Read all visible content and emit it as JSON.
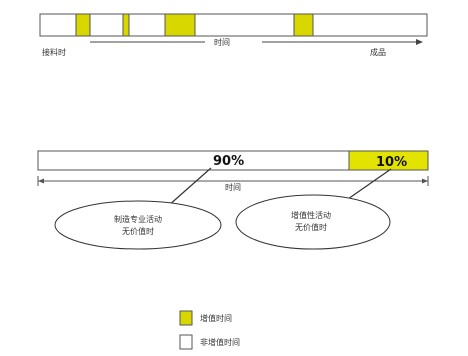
{
  "timeline": {
    "start_label": "接料时",
    "middle_label": "时间",
    "end_label": "成品",
    "value_added_color": "#d8d800",
    "non_value_added_color": "#ffffff"
  },
  "ratio_bar": {
    "non_value_percent_label": "90%",
    "value_percent_label": "10%",
    "non_value_percent": 90,
    "value_percent": 10,
    "span_label": "时间"
  },
  "callouts": {
    "left_line1": "制造专业活动",
    "left_line2": "无价值时",
    "right_line1": "增值性活动",
    "right_line2": "无价值时"
  },
  "legend": {
    "value_added_label": "增值时间",
    "non_value_added_label": "非增值时间"
  }
}
